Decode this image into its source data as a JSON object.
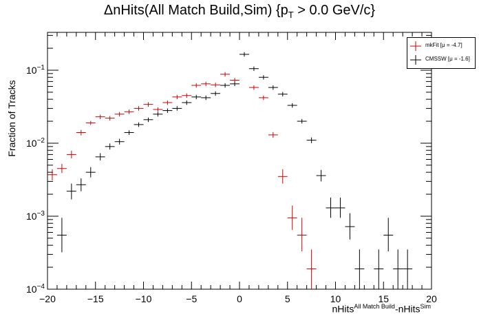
{
  "title": {
    "main": "ΔnHits(All Match Build,Sim) {p",
    "sub": "T",
    "rest": " > 0.0 GeV/c}"
  },
  "ylabel": "Fraction of Tracks",
  "xlabel": {
    "a": "nHits",
    "a_sup": "All Match Build",
    "b": "-nHits",
    "b_sup": "Sim"
  },
  "colors": {
    "mkfit": "#cc0000",
    "cmssw": "#000000"
  },
  "chart_data": {
    "type": "scatter",
    "xlim": [
      -20,
      20
    ],
    "ylim": [
      0.0001,
      0.33
    ],
    "yscale": "log",
    "x_ticks": [
      -20,
      -15,
      -10,
      -5,
      0,
      5,
      10,
      15,
      20
    ],
    "y_tick_labels": [
      {
        "v": 0.0001,
        "base": "10",
        "exp": "−4"
      },
      {
        "v": 0.001,
        "base": "10",
        "exp": "−3"
      },
      {
        "v": 0.01,
        "base": "10",
        "exp": "−2"
      },
      {
        "v": 0.1,
        "base": "10",
        "exp": "−1"
      }
    ],
    "legend_position": "top-right",
    "series": [
      {
        "name": "mkFit",
        "legend_label": "mkFit  [μ = -4.7]",
        "color": "#cc0000",
        "points": [
          {
            "x": -19.5,
            "y": 0.0037,
            "lo": 0.0031,
            "hi": 0.0044
          },
          {
            "x": -18.5,
            "y": 0.0045,
            "lo": 0.0039,
            "hi": 0.0052
          },
          {
            "x": -17.5,
            "y": 0.007,
            "lo": 0.0062,
            "hi": 0.0079
          },
          {
            "x": -16.5,
            "y": 0.014,
            "lo": 0.0128,
            "hi": 0.0152
          },
          {
            "x": -15.5,
            "y": 0.019,
            "lo": 0.0178,
            "hi": 0.0202
          },
          {
            "x": -14.5,
            "y": 0.023
          },
          {
            "x": -13.5,
            "y": 0.022
          },
          {
            "x": -12.5,
            "y": 0.025
          },
          {
            "x": -11.5,
            "y": 0.027
          },
          {
            "x": -10.5,
            "y": 0.03
          },
          {
            "x": -9.5,
            "y": 0.034
          },
          {
            "x": -8.5,
            "y": 0.029
          },
          {
            "x": -7.5,
            "y": 0.036
          },
          {
            "x": -6.5,
            "y": 0.043
          },
          {
            "x": -5.5,
            "y": 0.045
          },
          {
            "x": -4.5,
            "y": 0.062
          },
          {
            "x": -3.5,
            "y": 0.065
          },
          {
            "x": -2.5,
            "y": 0.063
          },
          {
            "x": -1.5,
            "y": 0.088
          },
          {
            "x": -0.5,
            "y": 0.073
          },
          {
            "x": 1.5,
            "y": 0.058
          },
          {
            "x": 2.5,
            "y": 0.042
          },
          {
            "x": 3.5,
            "y": 0.013,
            "lo": 0.0119,
            "hi": 0.0142
          },
          {
            "x": 4.5,
            "y": 0.0035,
            "lo": 0.0028,
            "hi": 0.0044
          },
          {
            "x": 5.5,
            "y": 0.00095,
            "lo": 0.00065,
            "hi": 0.0014
          },
          {
            "x": 6.5,
            "y": 0.00055,
            "lo": 0.00033,
            "hi": 0.00095
          },
          {
            "x": 7.5,
            "y": 0.00019,
            "lo": 0.0001,
            "hi": 0.00035
          }
        ]
      },
      {
        "name": "CMSSW",
        "legend_label": "CMSSW  [μ = -1.6]",
        "color": "#000000",
        "points": [
          {
            "x": -18.5,
            "y": 0.00055,
            "lo": 0.00032,
            "hi": 0.00095
          },
          {
            "x": -17.5,
            "y": 0.0022,
            "lo": 0.0017,
            "hi": 0.0028
          },
          {
            "x": -16.5,
            "y": 0.0027,
            "lo": 0.0022,
            "hi": 0.0033
          },
          {
            "x": -15.5,
            "y": 0.004,
            "lo": 0.0034,
            "hi": 0.0047
          },
          {
            "x": -14.5,
            "y": 0.0065,
            "lo": 0.0058,
            "hi": 0.0073
          },
          {
            "x": -13.5,
            "y": 0.009,
            "lo": 0.0082,
            "hi": 0.0099
          },
          {
            "x": -12.5,
            "y": 0.0105,
            "lo": 0.0096,
            "hi": 0.0115
          },
          {
            "x": -11.5,
            "y": 0.014,
            "lo": 0.013,
            "hi": 0.015
          },
          {
            "x": -10.5,
            "y": 0.018
          },
          {
            "x": -9.5,
            "y": 0.021
          },
          {
            "x": -8.5,
            "y": 0.025
          },
          {
            "x": -7.5,
            "y": 0.028
          },
          {
            "x": -6.5,
            "y": 0.03
          },
          {
            "x": -5.5,
            "y": 0.036
          },
          {
            "x": -4.5,
            "y": 0.043
          },
          {
            "x": -3.5,
            "y": 0.042
          },
          {
            "x": -2.5,
            "y": 0.048
          },
          {
            "x": -1.5,
            "y": 0.062
          },
          {
            "x": -0.5,
            "y": 0.065
          },
          {
            "x": 0.5,
            "y": 0.165
          },
          {
            "x": 1.5,
            "y": 0.105
          },
          {
            "x": 2.5,
            "y": 0.08
          },
          {
            "x": 3.5,
            "y": 0.058
          },
          {
            "x": 4.5,
            "y": 0.047
          },
          {
            "x": 5.5,
            "y": 0.033
          },
          {
            "x": 6.5,
            "y": 0.02
          },
          {
            "x": 7.5,
            "y": 0.011,
            "lo": 0.01,
            "hi": 0.012
          },
          {
            "x": 8.5,
            "y": 0.0036,
            "lo": 0.003,
            "hi": 0.0043
          },
          {
            "x": 9.5,
            "y": 0.0013,
            "lo": 0.00095,
            "hi": 0.0018
          },
          {
            "x": 10.5,
            "y": 0.0013,
            "lo": 0.00095,
            "hi": 0.0018
          },
          {
            "x": 11.5,
            "y": 0.00072,
            "lo": 0.00048,
            "hi": 0.0011
          },
          {
            "x": 12.5,
            "y": 0.00019,
            "lo": 0.0001,
            "hi": 0.00035
          },
          {
            "x": 14.5,
            "y": 0.00019,
            "lo": 0.0001,
            "hi": 0.00035
          },
          {
            "x": 15.5,
            "y": 0.00055,
            "lo": 0.00033,
            "hi": 0.00095
          },
          {
            "x": 16.5,
            "y": 0.00019,
            "lo": 0.0001,
            "hi": 0.00035
          },
          {
            "x": 17.5,
            "y": 0.00019,
            "lo": 0.0001,
            "hi": 0.00035
          }
        ]
      }
    ]
  }
}
